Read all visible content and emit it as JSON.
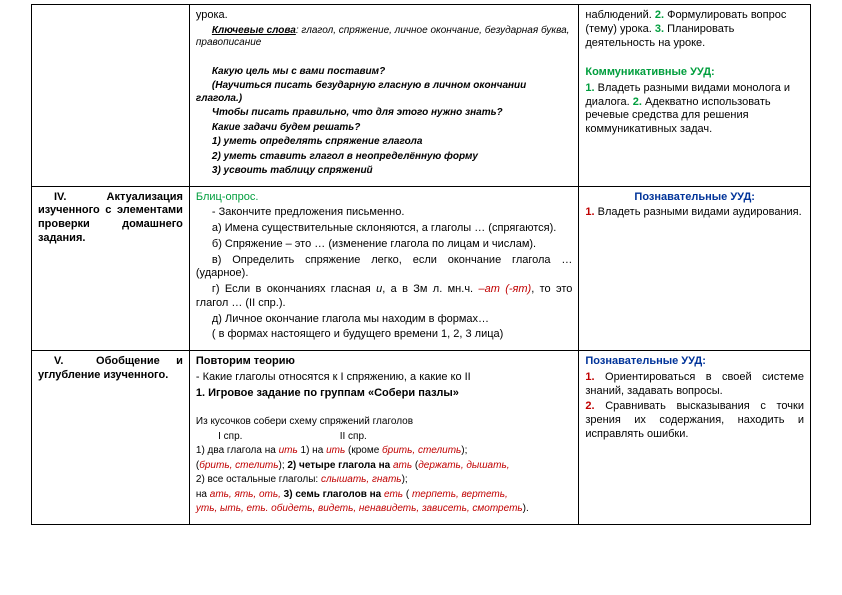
{
  "row1": {
    "col2_top": "урока.",
    "keywords_label": "Ключевые слова",
    "keywords_text": ": глагол, спряжение, личное окончание, безударная буква, правописание",
    "q1": "Какую цель мы с вами поставим?",
    "q2": "(Научиться писать безударную гласную в личном окончании глагола.)",
    "q3": "Чтобы писать правильно, что для этого нужно знать?",
    "q4": "Какие задачи будем решать?",
    "t1": "1) уметь определять спряжение глагола",
    "t2": "2) уметь ставить глагол в неопределённую форму",
    "t3": "3) усвоить таблицу спряжений",
    "c3_l1a": "наблюдений.",
    "c3_l1b": " 2. ",
    "c3_l1c": "Формулировать вопрос (тему) урока.",
    "c3_l1d": " 3. ",
    "c3_l1e": "Планировать деятельность на уроке.",
    "kom_title": "Коммуникативные УУД:",
    "kom_1n": "1. ",
    "kom_1": "Владеть разными видами монолога и диалога.",
    "kom_2n": " 2. ",
    "kom_2": "Адекватно использовать речевые средства для решения коммуникативных задач."
  },
  "row2": {
    "c1_num": "IV.",
    "c1_txt": "Актуализация изученного с элементами проверки домашнего задания.",
    "blitz": "Блиц-опрос.",
    "l0": "- Закончите предложения письменно.",
    "la": "а) Имена существительные склоняются, а глаголы … (спрягаются).",
    "lb": "б) Спряжение – это … (изменение глагола по лицам и числам).",
    "lc": "в) Определить спряжение легко, если окончание глагола … (ударное).",
    "ld_a": "г) Если в окончаниях гласная ",
    "ld_i": "и",
    "ld_b": ", а в Зм л. мн.ч. ",
    "ld_red": "–ат (-ят)",
    "ld_c": ", то это глагол … (II спр.).",
    "le": "д) Личное окончание глагола мы находим в формах…",
    "lf": "( в формах настоящего и будущего времени 1, 2, 3 лица)",
    "pozn_title": "Познавательные УУД:",
    "pozn_1n": "1. ",
    "pozn_1": "Владеть разными видами аудирования."
  },
  "row3": {
    "c1_num": "V.",
    "c1_txt": "Обобщение и углубление изученного.",
    "hdr": "Повторим теорию",
    "q": "- Какие глаголы относятся к I спряжению, а какие ко II",
    "game": "1. Игровое задание по группам «Собери пазлы»",
    "intro": "Из кусочков собери схему спряжений глаголов",
    "h1": "I спр.",
    "h2": "II спр.",
    "l1a": "1) два глагола на ",
    "l1a_r": "ить",
    "l1s": "               ",
    "l1b": "1) на ",
    "l1b_r": "ить ",
    "l1b2a": "(кроме ",
    "l1b2_r": "брить, стелить",
    "l1b2b": ");",
    "l2a_a": "(",
    "l2a_r": "брить, стелить",
    "l2a_b": ");             ",
    "l2b": "2) четыре глагола на ",
    "l2b_r": "ать ",
    "l2b2a": "(",
    "l2b2_r": "держать, дышать,",
    "l3a": "2) все остальные глаголы:        ",
    "l3a_r": "слышать, гнать",
    "l3a_b": ");",
    "l4a": "на ",
    "l4a_r": "ать, ять, оть,",
    "l4as": "             ",
    "l4b": "3) семь глаголов на ",
    "l4b_r": "еть ",
    "l4b2a": "( ",
    "l4b2_r": "терпеть, вертеть,",
    "l5a_r": "уть, ыть, еть.",
    "l5as": "               ",
    "l5b_r": "обидеть, видеть, ненавидеть, зависеть, смотреть",
    "l5b_b": ").",
    "pozn_title": "Познавательные УУД:",
    "p1n": "1. ",
    "p1": "Ориентироваться в своей системе знаний, задавать вопросы.",
    "p2n": "2. ",
    "p2": "Сравнивать высказывания с точки зрения их содержания, находить и исправлять ошибки."
  }
}
